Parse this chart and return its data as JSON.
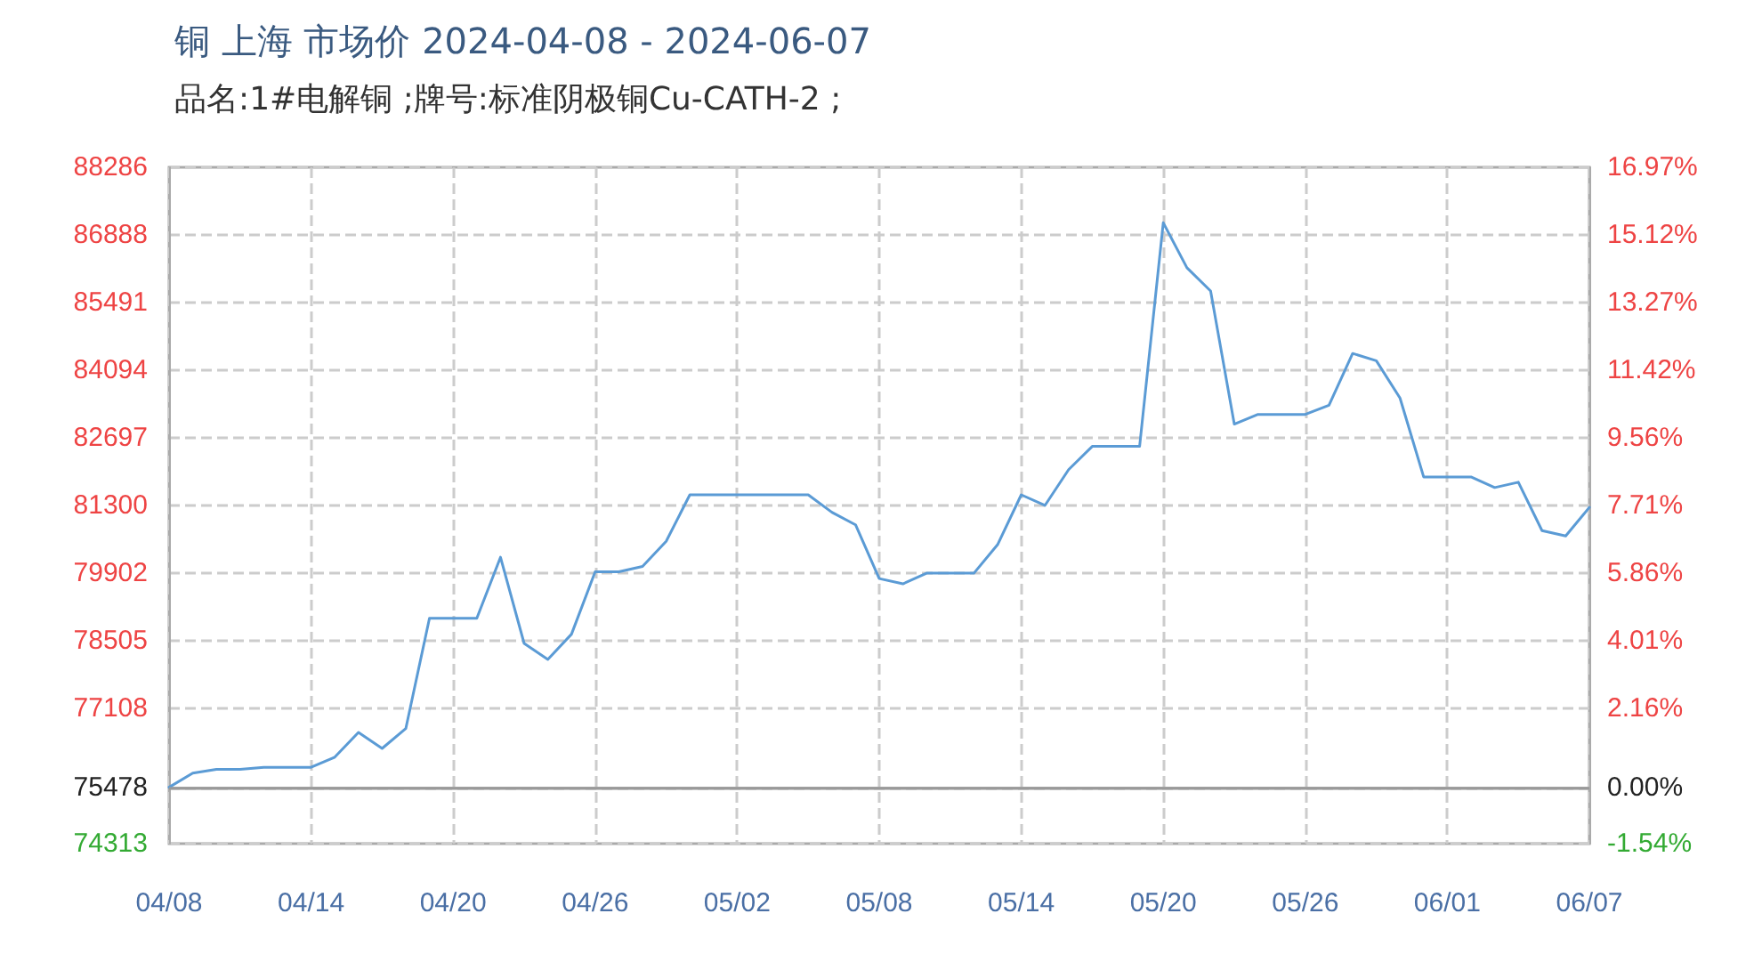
{
  "chart_data": {
    "type": "line",
    "title": "铜 上海 市场价 2024-04-08 - 2024-06-07",
    "subtitle": "品名:1#电解铜 ;牌号:标准阴极铜Cu-CATH-2 ;",
    "x": [
      "2024-04-08",
      "2024-04-09",
      "2024-04-10",
      "2024-04-11",
      "2024-04-12",
      "2024-04-13",
      "2024-04-14",
      "2024-04-15",
      "2024-04-16",
      "2024-04-17",
      "2024-04-18",
      "2024-04-19",
      "2024-04-20",
      "2024-04-21",
      "2024-04-22",
      "2024-04-23",
      "2024-04-24",
      "2024-04-25",
      "2024-04-26",
      "2024-04-27",
      "2024-04-28",
      "2024-04-29",
      "2024-04-30",
      "2024-05-01",
      "2024-05-02",
      "2024-05-03",
      "2024-05-04",
      "2024-05-05",
      "2024-05-06",
      "2024-05-07",
      "2024-05-08",
      "2024-05-09",
      "2024-05-10",
      "2024-05-11",
      "2024-05-12",
      "2024-05-13",
      "2024-05-14",
      "2024-05-15",
      "2024-05-16",
      "2024-05-17",
      "2024-05-18",
      "2024-05-19",
      "2024-05-20",
      "2024-05-21",
      "2024-05-22",
      "2024-05-23",
      "2024-05-24",
      "2024-05-25",
      "2024-05-26",
      "2024-05-27",
      "2024-05-28",
      "2024-05-29",
      "2024-05-30",
      "2024-05-31",
      "2024-06-01",
      "2024-06-02",
      "2024-06-03",
      "2024-06-04",
      "2024-06-05",
      "2024-06-06",
      "2024-06-07"
    ],
    "series": [
      {
        "color": "#5b9bd5",
        "values": [
          75478,
          75770,
          75850,
          75850,
          75890,
          75890,
          75890,
          76100,
          76610,
          76280,
          76690,
          78970,
          78970,
          78970,
          80230,
          78450,
          78120,
          78640,
          79930,
          79930,
          80040,
          80560,
          81520,
          81520,
          81520,
          81520,
          81520,
          81520,
          81160,
          80900,
          79790,
          79680,
          79900,
          79900,
          79900,
          80490,
          81520,
          81300,
          82040,
          82520,
          82520,
          82520,
          87140,
          86210,
          85730,
          82980,
          83180,
          83180,
          83180,
          83370,
          84440,
          84290,
          83520,
          81890,
          81890,
          81890,
          81670,
          81780,
          80780,
          80670,
          81260
        ]
      }
    ],
    "xlim": [
      "2024-04-08",
      "2024-06-07"
    ],
    "xticks": [
      {
        "value": "2024-04-08",
        "label": "04/08"
      },
      {
        "value": "2024-04-14",
        "label": "04/14"
      },
      {
        "value": "2024-04-20",
        "label": "04/20"
      },
      {
        "value": "2024-04-26",
        "label": "04/26"
      },
      {
        "value": "2024-05-02",
        "label": "05/02"
      },
      {
        "value": "2024-05-08",
        "label": "05/08"
      },
      {
        "value": "2024-05-14",
        "label": "05/14"
      },
      {
        "value": "2024-05-20",
        "label": "05/20"
      },
      {
        "value": "2024-05-26",
        "label": "05/26"
      },
      {
        "value": "2024-06-01",
        "label": "06/01"
      },
      {
        "value": "2024-06-07",
        "label": "06/07"
      }
    ],
    "ylim": [
      74313,
      88286
    ],
    "yticks": [
      74313,
      75478,
      77108,
      78505,
      79902,
      81300,
      82697,
      84094,
      85491,
      86888,
      88286
    ],
    "y2lim": [
      -1.54,
      16.97
    ],
    "y2ticks": [
      {
        "value": -1.54,
        "label": "-1.54%"
      },
      {
        "value": 0,
        "label": "0.00%"
      },
      {
        "value": 2.16,
        "label": "2.16%"
      },
      {
        "value": 4.01,
        "label": "4.01%"
      },
      {
        "value": 5.86,
        "label": "5.86%"
      },
      {
        "value": 7.71,
        "label": "7.71%"
      },
      {
        "value": 9.56,
        "label": "9.56%"
      },
      {
        "value": 11.42,
        "label": "11.42%"
      },
      {
        "value": 13.27,
        "label": "13.27%"
      },
      {
        "value": 15.12,
        "label": "15.12%"
      },
      {
        "value": 16.97,
        "label": "16.97%"
      }
    ],
    "ref_lines": [
      {
        "axis": "y2",
        "value": 0,
        "color": "#999999",
        "line_style": "solid"
      }
    ],
    "grid": true,
    "marker": "none",
    "line_style": "solid"
  }
}
